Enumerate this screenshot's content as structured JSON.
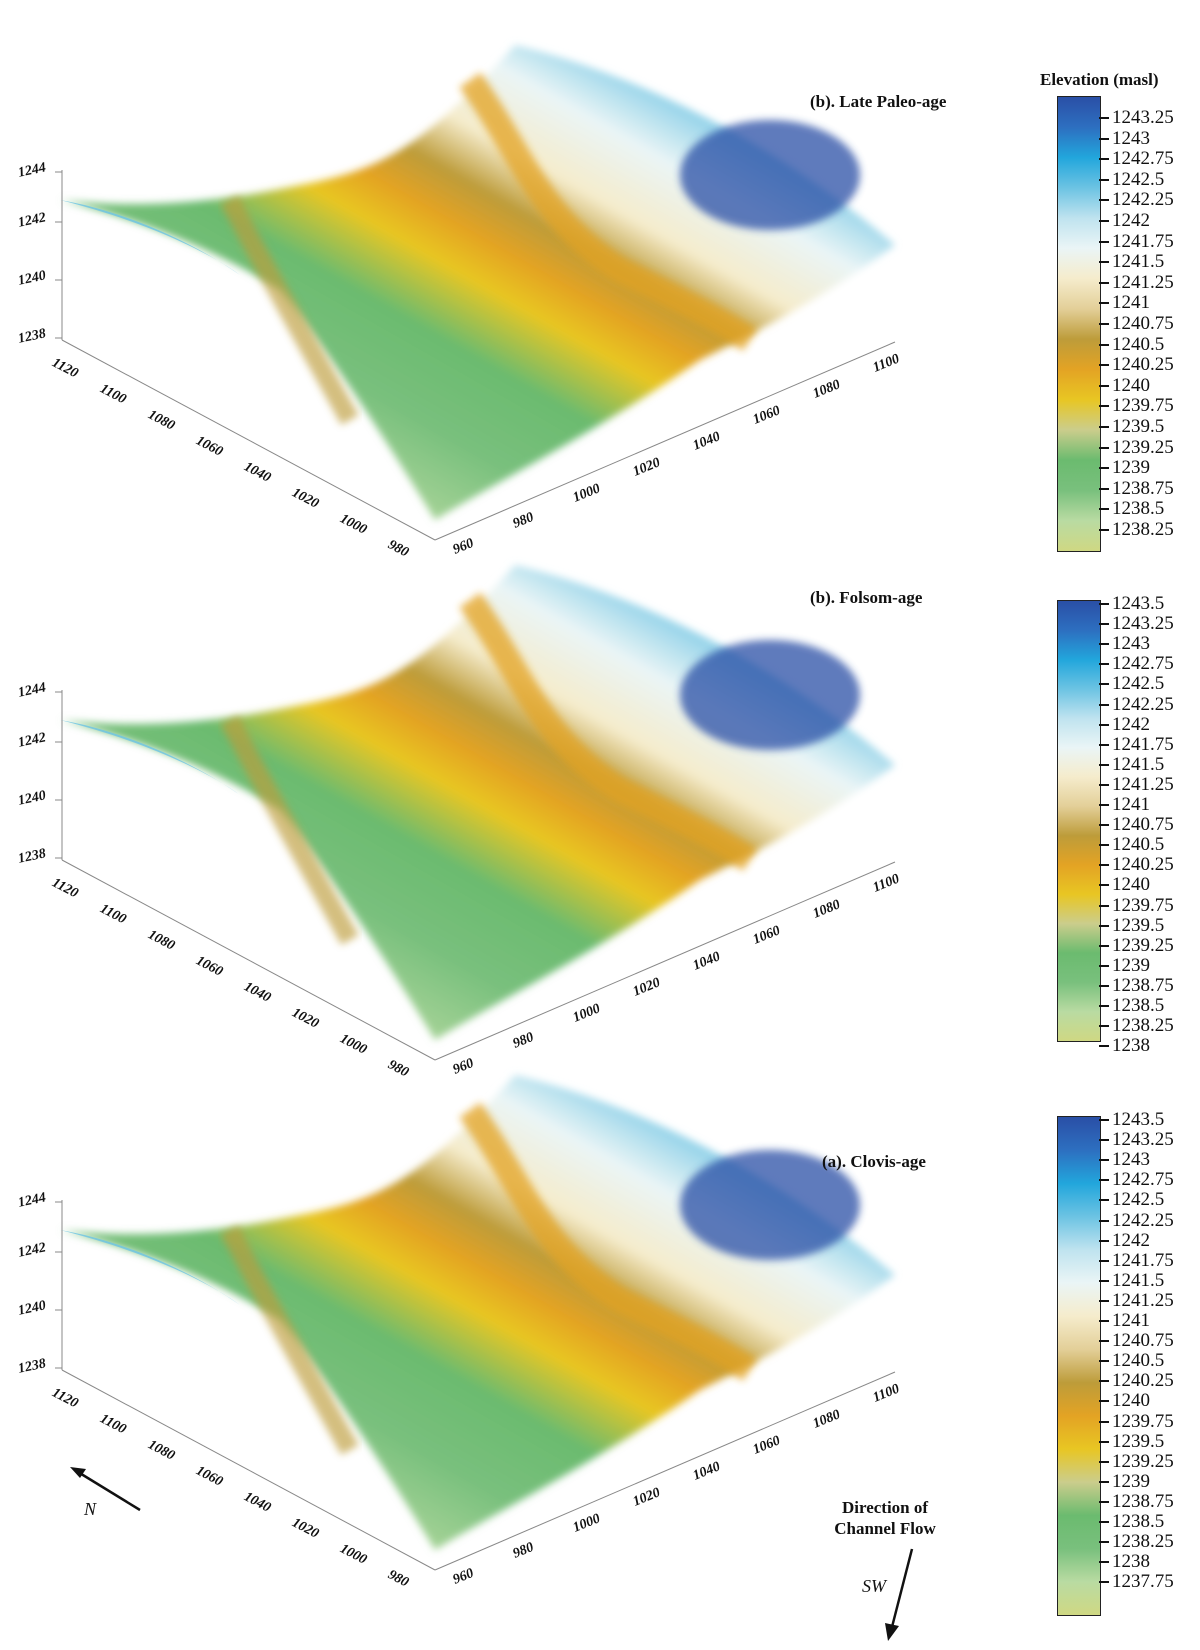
{
  "colorbar": {
    "title": "Elevation (masl)",
    "colors": [
      "#2a4fa6",
      "#2d6fc0",
      "#22a6dc",
      "#6cc3e3",
      "#bfe3ef",
      "#eaf5f6",
      "#f5eccc",
      "#e3cf98",
      "#bd9c3a",
      "#e3a324",
      "#e8c623",
      "#cbcd8c",
      "#6bbb6f",
      "#79c07d",
      "#b9dba2",
      "#cfd883"
    ]
  },
  "panels": [
    {
      "title": "(b). Late Paleo-age",
      "z_ticks": [
        "1244",
        "1242",
        "1240",
        "1238"
      ],
      "y_ticks": [
        "1120",
        "1100",
        "1080",
        "1060",
        "1040",
        "1020",
        "1000",
        "980"
      ],
      "x_ticks": [
        "960",
        "980",
        "1000",
        "1020",
        "1040",
        "1060",
        "1080",
        "1100"
      ],
      "legend_ticks": [
        "1243.25",
        "1243",
        "1242.75",
        "1242.5",
        "1242.25",
        "1242",
        "1241.75",
        "1241.5",
        "1241.25",
        "1241",
        "1240.75",
        "1240.5",
        "1240.25",
        "1240",
        "1239.75",
        "1239.5",
        "1239.25",
        "1239",
        "1238.75",
        "1238.5",
        "1238.25"
      ]
    },
    {
      "title": "(b). Folsom-age",
      "z_ticks": [
        "1244",
        "1242",
        "1240",
        "1238"
      ],
      "y_ticks": [
        "1120",
        "1100",
        "1080",
        "1060",
        "1040",
        "1020",
        "1000",
        "980"
      ],
      "x_ticks": [
        "960",
        "980",
        "1000",
        "1020",
        "1040",
        "1060",
        "1080",
        "1100"
      ],
      "legend_ticks": [
        "1243.5",
        "1243.25",
        "1243",
        "1242.75",
        "1242.5",
        "1242.25",
        "1242",
        "1241.75",
        "1241.5",
        "1241.25",
        "1241",
        "1240.75",
        "1240.5",
        "1240.25",
        "1240",
        "1239.75",
        "1239.5",
        "1239.25",
        "1239",
        "1238.75",
        "1238.5",
        "1238.25",
        "1238"
      ]
    },
    {
      "title": "(a). Clovis-age",
      "z_ticks": [
        "1244",
        "1242",
        "1240",
        "1238"
      ],
      "y_ticks": [
        "1120",
        "1100",
        "1080",
        "1060",
        "1040",
        "1020",
        "1000",
        "980"
      ],
      "x_ticks": [
        "960",
        "980",
        "1000",
        "1020",
        "1040",
        "1060",
        "1080",
        "1100"
      ],
      "legend_ticks": [
        "1243.5",
        "1243.25",
        "1243",
        "1242.75",
        "1242.5",
        "1242.25",
        "1242",
        "1241.75",
        "1241.5",
        "1241.25",
        "1241",
        "1240.75",
        "1240.5",
        "1240.25",
        "1240",
        "1239.75",
        "1239.5",
        "1239.25",
        "1239",
        "1238.75",
        "1238.5",
        "1238.25",
        "1238",
        "1237.75"
      ]
    }
  ],
  "annotations": {
    "north_label": "N",
    "flow_title_line1": "Direction of",
    "flow_title_line2": "Channel Flow",
    "flow_dir_label": "SW"
  },
  "chart_data": [
    {
      "type": "surface3d",
      "title": "(b). Late Paleo-age",
      "zlabel": "Elevation (masl)",
      "zlim": [
        1238,
        1244
      ],
      "x_ticks": [
        960,
        980,
        1000,
        1020,
        1040,
        1060,
        1080,
        1100
      ],
      "y_ticks": [
        980,
        1000,
        1020,
        1040,
        1060,
        1080,
        1100,
        1120
      ],
      "z_ticks": [
        1238,
        1240,
        1242,
        1244
      ],
      "colorbar_range": [
        1238.25,
        1243.25
      ],
      "colorbar_step": 0.25
    },
    {
      "type": "surface3d",
      "title": "(b). Folsom-age",
      "zlabel": "Elevation (masl)",
      "zlim": [
        1238,
        1244
      ],
      "x_ticks": [
        960,
        980,
        1000,
        1020,
        1040,
        1060,
        1080,
        1100
      ],
      "y_ticks": [
        980,
        1000,
        1020,
        1040,
        1060,
        1080,
        1100,
        1120
      ],
      "z_ticks": [
        1238,
        1240,
        1242,
        1244
      ],
      "colorbar_range": [
        1238,
        1243.5
      ],
      "colorbar_step": 0.25
    },
    {
      "type": "surface3d",
      "title": "(a). Clovis-age",
      "zlabel": "Elevation (masl)",
      "zlim": [
        1238,
        1244
      ],
      "x_ticks": [
        960,
        980,
        1000,
        1020,
        1040,
        1060,
        1080,
        1100
      ],
      "y_ticks": [
        980,
        1000,
        1020,
        1040,
        1060,
        1080,
        1100,
        1120
      ],
      "z_ticks": [
        1238,
        1240,
        1242,
        1244
      ],
      "colorbar_range": [
        1237.75,
        1243.5
      ],
      "colorbar_step": 0.25
    }
  ]
}
